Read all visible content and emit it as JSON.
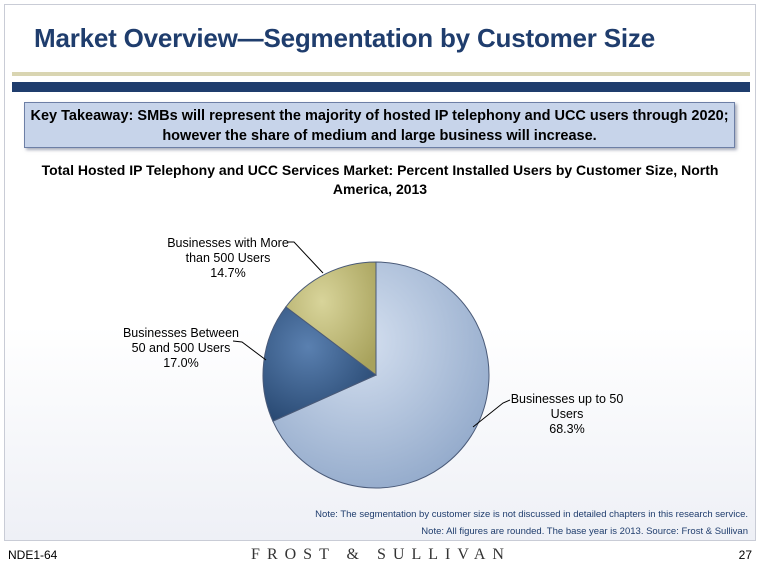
{
  "page_title": "Market Overview—Segmentation by Customer Size",
  "takeaway": "Key Takeaway: SMBs will represent the majority of hosted IP telephony and UCC users through 2020; however the share of medium and large business will increase.",
  "chart_data": {
    "type": "pie",
    "title": "Total Hosted IP Telephony and UCC Services Market: Percent Installed Users by Customer Size, North America, 2013",
    "slices": [
      {
        "label": "Businesses up to 50 Users",
        "value": 68.3,
        "value_label": "68.3%",
        "color": "#a9bcd9"
      },
      {
        "label": "Businesses Between 50 and 500 Users",
        "value": 17.0,
        "value_label": "17.0%",
        "color": "#3f6493"
      },
      {
        "label": "Businesses with More than 500 Users",
        "value": 14.7,
        "value_label": "14.7%",
        "color": "#c2bd7a"
      }
    ]
  },
  "labels": {
    "small_line1": "Businesses up to 50",
    "small_line2": "Users",
    "medium_line1": "Businesses Between",
    "medium_line2": "50 and 500 Users",
    "large_line1": "Businesses with More",
    "large_line2": "than 500 Users"
  },
  "notes": {
    "note1": "Note: The segmentation by customer size is not discussed in detailed chapters in this research service.",
    "note2": "Note: All figures are rounded. The base year is 2013. Source: Frost & Sullivan"
  },
  "footer": {
    "code": "NDE1-64",
    "brand": "FROST & SULLIVAN",
    "page": "27"
  }
}
